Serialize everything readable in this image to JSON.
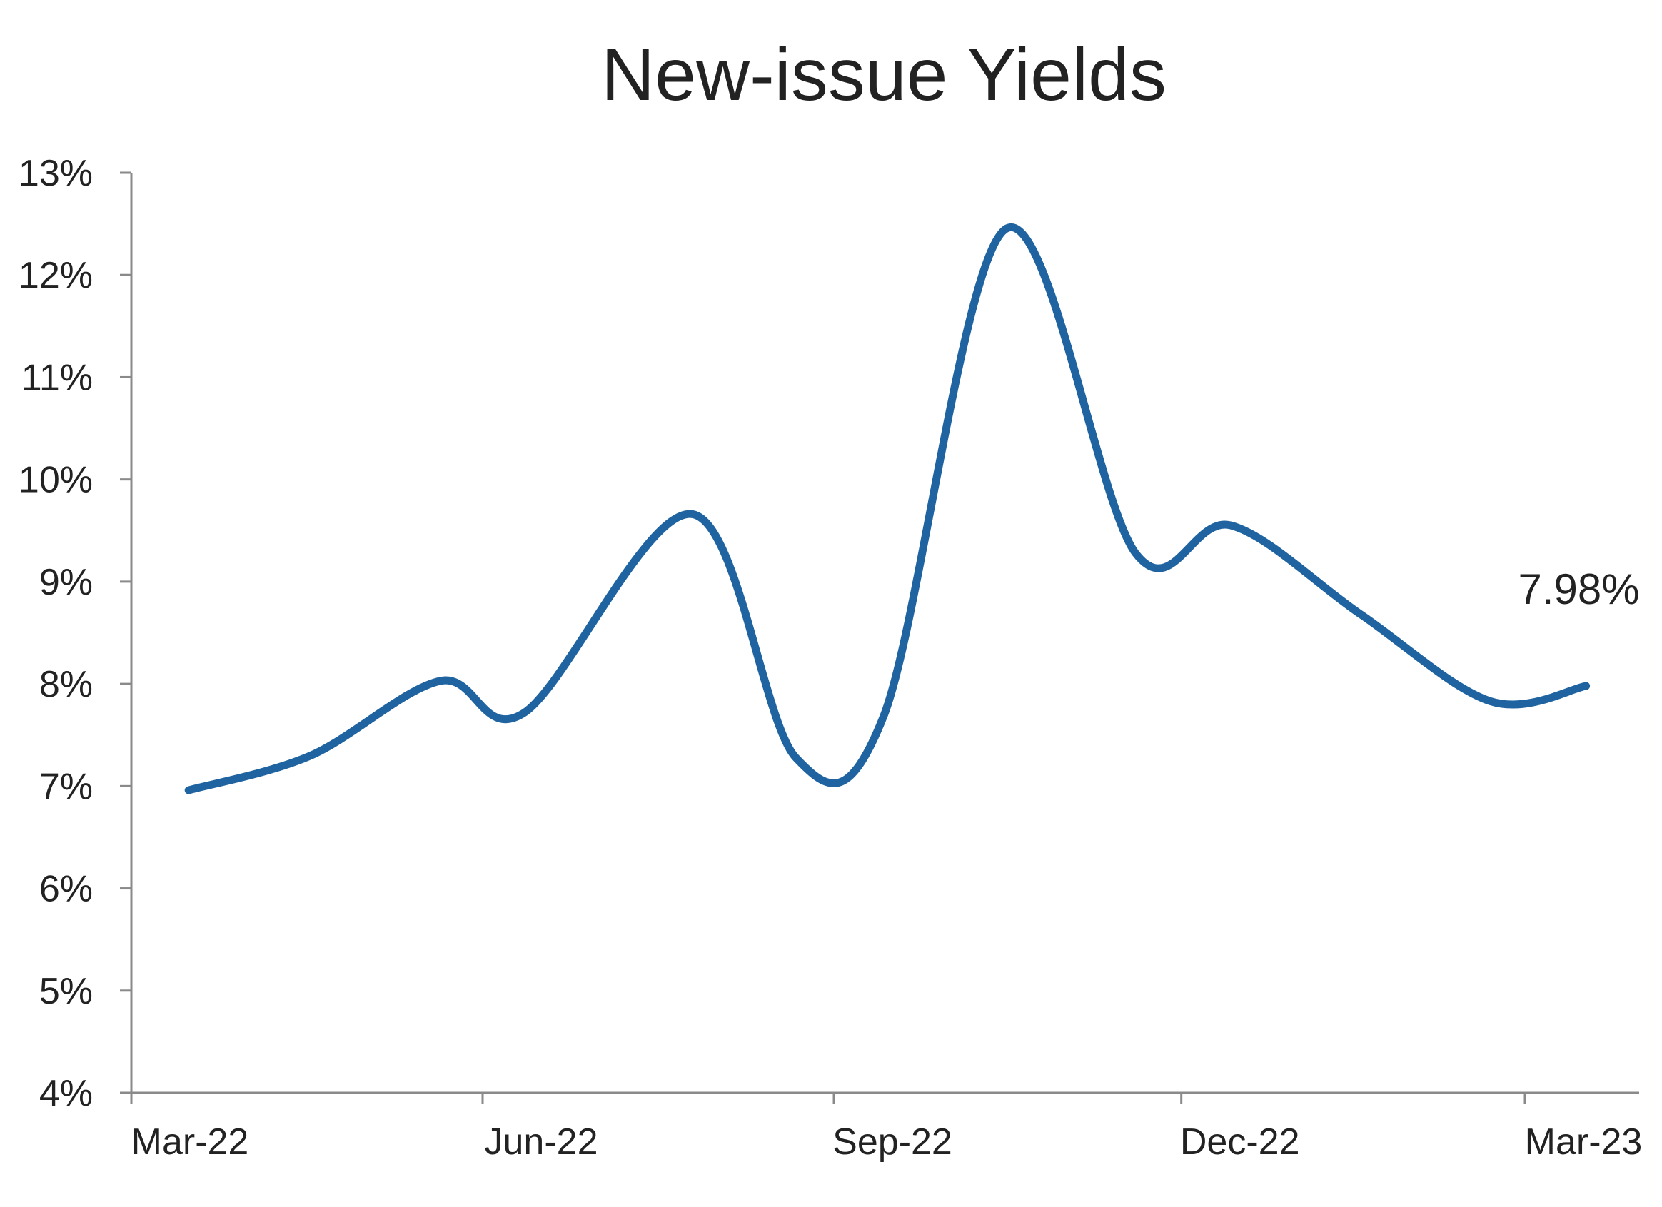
{
  "chart_data": {
    "type": "line",
    "title": "New-issue Yields",
    "xlabel": "",
    "ylabel": "",
    "x_axis": {
      "start": "2022-03-01",
      "end": "2023-03-01",
      "tick_dates": [
        "2022-03-01",
        "2022-06-01",
        "2022-09-01",
        "2022-12-01",
        "2023-03-01"
      ],
      "tick_labels": [
        "Mar-22",
        "Jun-22",
        "Sep-22",
        "Dec-22",
        "Mar-23"
      ]
    },
    "y_axis": {
      "min": 4,
      "max": 13,
      "ticks": [
        4,
        5,
        6,
        7,
        8,
        9,
        10,
        11,
        12,
        13
      ],
      "tick_labels": [
        "4%",
        "5%",
        "6%",
        "7%",
        "8%",
        "9%",
        "10%",
        "11%",
        "12%",
        "13%"
      ]
    },
    "grid": false,
    "legend": "none",
    "series": [
      {
        "color": "#1f64a0",
        "points": [
          {
            "x": "2022-03-16",
            "y": 6.96
          },
          {
            "x": "2022-04-17",
            "y": 7.3
          },
          {
            "x": "2022-05-21",
            "y": 8.03
          },
          {
            "x": "2022-06-12",
            "y": 7.72
          },
          {
            "x": "2022-07-26",
            "y": 9.66
          },
          {
            "x": "2022-08-22",
            "y": 7.28
          },
          {
            "x": "2022-09-14",
            "y": 7.68
          },
          {
            "x": "2022-10-16",
            "y": 12.45
          },
          {
            "x": "2022-11-19",
            "y": 9.28
          },
          {
            "x": "2022-12-14",
            "y": 9.55
          },
          {
            "x": "2023-01-17",
            "y": 8.68
          },
          {
            "x": "2023-02-20",
            "y": 7.83
          },
          {
            "x": "2023-03-17",
            "y": 7.98
          }
        ]
      }
    ],
    "annotations": [
      {
        "text": "7.98%",
        "x": "2023-03-17",
        "y": 7.98
      }
    ]
  }
}
